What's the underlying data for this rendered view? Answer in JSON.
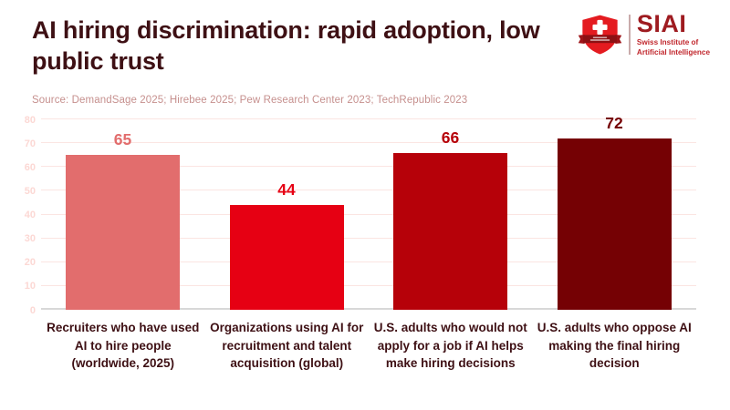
{
  "header": {
    "title": "AI hiring discrimination: rapid adoption, low public trust",
    "source": "Source: DemandSage 2025; Hirebee 2025; Pew Research Center 2023; TechRepublic 2023"
  },
  "logo": {
    "wordmark": "SIAI",
    "subtitle_line1": "Swiss Institute of",
    "subtitle_line2": "Artificial Intelligence",
    "shield_icon": "swiss-shield-icon"
  },
  "chart_data": {
    "type": "bar",
    "title": "AI hiring discrimination: rapid adoption, low public trust",
    "categories": [
      "Recruiters who have used AI to hire people (worldwide, 2025)",
      "Organizations using AI for recruitment and talent acquisition (global)",
      "U.S. adults who would not apply for a job if AI helps make hiring decisions",
      "U.S. adults who oppose AI making the final hiring decision"
    ],
    "values": [
      65,
      44,
      66,
      72
    ],
    "bar_colors": [
      "#e26d6d",
      "#e60013",
      "#b60109",
      "#750104"
    ],
    "value_label_colors": [
      "#e26d6d",
      "#e60013",
      "#b60109",
      "#750104"
    ],
    "xlabel": "",
    "ylabel": "",
    "ylim": [
      0,
      80
    ],
    "yticks": [
      0,
      10,
      20,
      30,
      40,
      50,
      60,
      70,
      80
    ],
    "grid": true,
    "legend": "none",
    "data_labels": true
  },
  "colors": {
    "title_text": "#3e1014",
    "source_text": "#c6908e",
    "tick_label": "#fcd8d4",
    "gridline": "#fbe5e2",
    "axis_line": "#d8d8d8",
    "logo_shield_red": "#e41b20",
    "logo_ribbon_dark_red": "#8c1114",
    "logo_wordmark": "#9e1b20",
    "logo_subtitle": "#c1272d"
  }
}
